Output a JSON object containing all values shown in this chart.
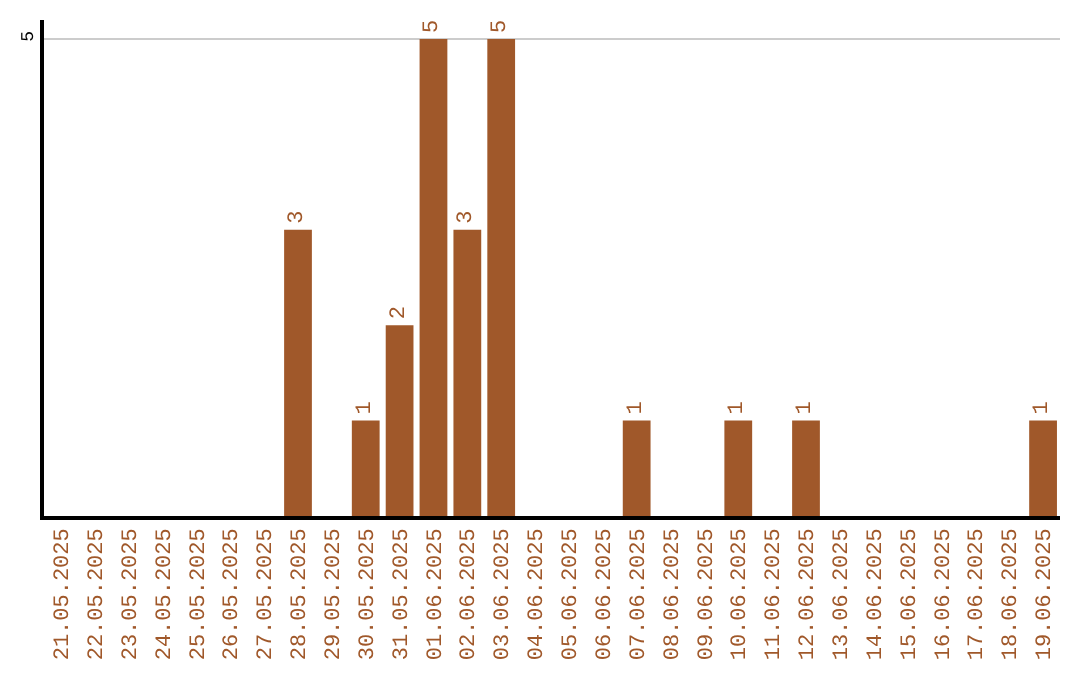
{
  "chart_data": {
    "type": "bar",
    "categories": [
      "21.05.2025",
      "22.05.2025",
      "23.05.2025",
      "24.05.2025",
      "25.05.2025",
      "26.05.2025",
      "27.05.2025",
      "28.05.2025",
      "29.05.2025",
      "30.05.2025",
      "31.05.2025",
      "01.06.2025",
      "02.06.2025",
      "03.06.2025",
      "04.06.2025",
      "05.06.2025",
      "06.06.2025",
      "07.06.2025",
      "08.06.2025",
      "09.06.2025",
      "10.06.2025",
      "11.06.2025",
      "12.06.2025",
      "13.06.2025",
      "14.06.2025",
      "15.06.2025",
      "16.06.2025",
      "17.06.2025",
      "18.06.2025",
      "19.06.2025"
    ],
    "values": [
      0,
      0,
      0,
      0,
      0,
      0,
      0,
      3,
      0,
      1,
      2,
      5,
      3,
      5,
      0,
      0,
      0,
      1,
      0,
      0,
      1,
      0,
      1,
      0,
      0,
      0,
      0,
      0,
      0,
      1
    ],
    "value_labels": [
      null,
      null,
      null,
      null,
      null,
      null,
      null,
      "3",
      null,
      "1",
      "2",
      "5",
      "3",
      "5",
      null,
      null,
      null,
      "1",
      null,
      null,
      "1",
      null,
      "1",
      null,
      null,
      null,
      null,
      null,
      null,
      "1"
    ],
    "color": "#a0582a",
    "ylim": [
      0,
      5.2
    ],
    "yticks": [
      5
    ],
    "grid": "y",
    "legend": false
  }
}
